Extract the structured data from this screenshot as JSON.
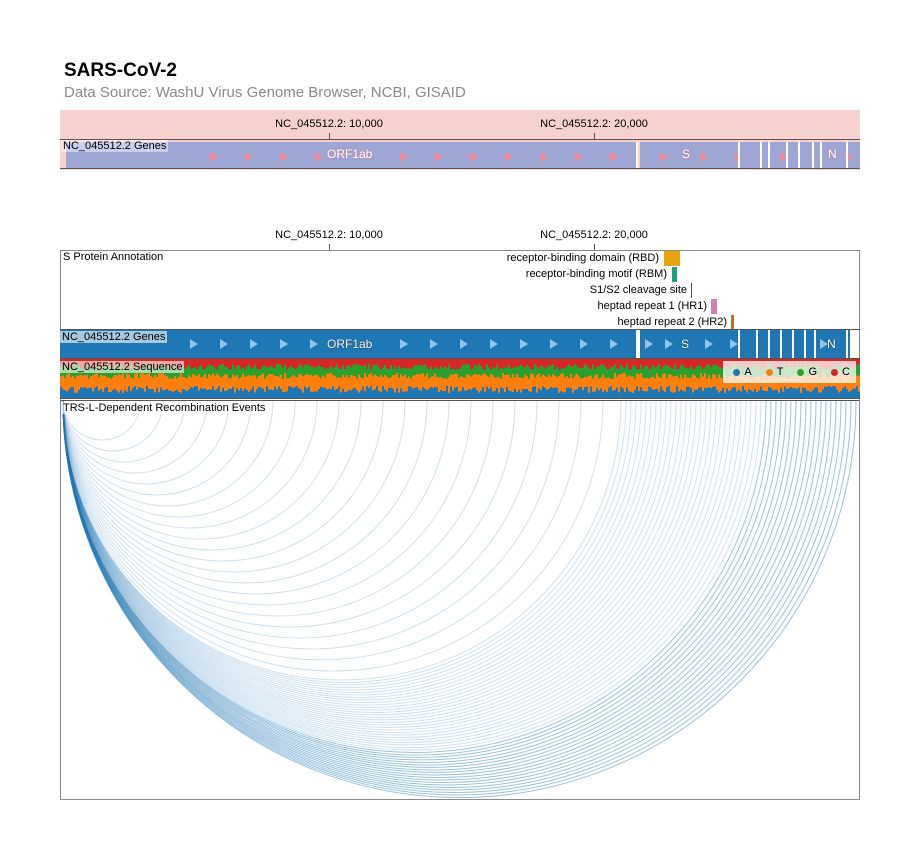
{
  "header": {
    "title": "SARS-CoV-2",
    "subtitle": "Data Source: WashU Virus Genome Browser, NCBI, GISAID"
  },
  "overview": {
    "ticks": [
      "NC_045512.2: 10,000",
      "NC_045512.2: 20,000"
    ],
    "genes_label": "NC_045512.2 Genes",
    "gene_names": {
      "orf1ab": "ORF1ab",
      "s": "S",
      "n": "N"
    },
    "colors": {
      "background": "#f7d0d0",
      "track": "#9ea6d6",
      "arrow": "#f08a96"
    }
  },
  "detail": {
    "ticks": [
      "NC_045512.2: 10,000",
      "NC_045512.2: 20,000"
    ],
    "annotation_label": "S Protein Annotation",
    "annotations": [
      {
        "label": "receptor-binding domain (RBD)",
        "color": "#e6a20f"
      },
      {
        "label": "receptor-binding motif (RBM)",
        "color": "#19a184"
      },
      {
        "label": "S1/S2 cleavage site",
        "color": "#555555"
      },
      {
        "label": "heptad repeat 1 (HR1)",
        "color": "#d17fb0"
      },
      {
        "label": "heptad repeat 2 (HR2)",
        "color": "#cc6a1c"
      }
    ],
    "genes_label": "NC_045512.2 Genes",
    "gene_names": {
      "orf1ab": "ORF1ab",
      "s": "S",
      "n": "N"
    },
    "sequence_label": "NC_045512.2 Sequence",
    "legend": [
      {
        "label": "A",
        "color": "#1f77b4"
      },
      {
        "label": "T",
        "color": "#ff7f0e"
      },
      {
        "label": "G",
        "color": "#2ca02c"
      },
      {
        "label": "C",
        "color": "#d62728"
      }
    ],
    "recombination_label": "TRS-L-Dependent Recombination Events",
    "colors": {
      "track": "#1f77b4",
      "arc": "#1f77b4"
    }
  }
}
